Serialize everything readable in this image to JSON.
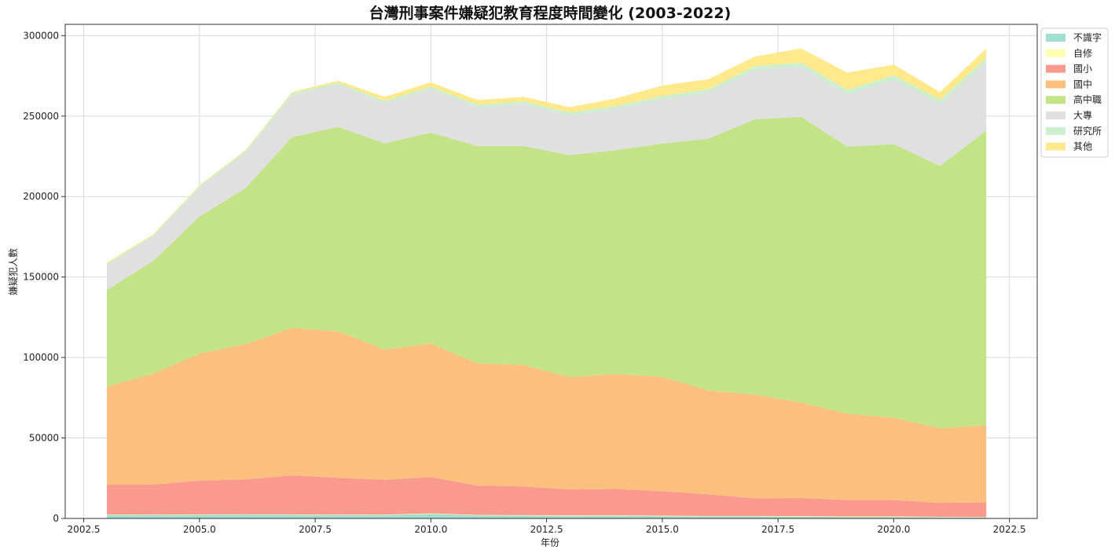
{
  "chart_data": {
    "type": "area",
    "stacked": true,
    "title": "台灣刑事案件嫌疑犯教育程度時間變化 (2003-2022)",
    "xlabel": "年份",
    "ylabel": "嫌疑犯人數",
    "x": [
      2003,
      2004,
      2005,
      2006,
      2007,
      2008,
      2009,
      2010,
      2011,
      2012,
      2013,
      2014,
      2015,
      2016,
      2017,
      2018,
      2019,
      2020,
      2021,
      2022
    ],
    "xlim": [
      2002.1,
      2023.1
    ],
    "ylim": [
      0,
      307000
    ],
    "xticks": [
      2002.5,
      2005.0,
      2007.5,
      2010.0,
      2012.5,
      2015.0,
      2017.5,
      2020.0,
      2022.5
    ],
    "xtick_labels": [
      "2002.5",
      "2005.0",
      "2007.5",
      "2010.0",
      "2012.5",
      "2015.0",
      "2017.5",
      "2020.0",
      "2022.5"
    ],
    "yticks": [
      0,
      50000,
      100000,
      150000,
      200000,
      250000,
      300000
    ],
    "ytick_labels": [
      "0",
      "50000",
      "100000",
      "150000",
      "200000",
      "250000",
      "300000"
    ],
    "grid": true,
    "legend_position": "top-right-outside",
    "series": [
      {
        "name": "不識字",
        "color": "#9edfcf",
        "values": [
          2200,
          2000,
          2200,
          2300,
          2200,
          2000,
          2100,
          2800,
          1900,
          1700,
          1500,
          1600,
          1400,
          1200,
          1200,
          1100,
          900,
          900,
          700,
          600
        ]
      },
      {
        "name": "自修",
        "color": "#ffffb0",
        "values": [
          300,
          300,
          300,
          300,
          300,
          300,
          300,
          300,
          300,
          300,
          300,
          300,
          300,
          300,
          300,
          300,
          300,
          300,
          300,
          300
        ]
      },
      {
        "name": "國小",
        "color": "#fa9a8f",
        "values": [
          18500,
          18700,
          21000,
          21700,
          24300,
          23000,
          21600,
          22600,
          18200,
          17900,
          16200,
          16400,
          15200,
          13500,
          11000,
          11300,
          10200,
          10200,
          8700,
          9100
        ]
      },
      {
        "name": "國中",
        "color": "#fcc07e",
        "values": [
          61000,
          69000,
          79000,
          84000,
          91600,
          91000,
          81000,
          83000,
          76000,
          75500,
          69800,
          71500,
          71000,
          64500,
          64500,
          59300,
          53600,
          51100,
          46300,
          48000
        ]
      },
      {
        "name": "高中職",
        "color": "#c2e386",
        "values": [
          60000,
          70000,
          85000,
          97000,
          118500,
          127000,
          128000,
          131000,
          135000,
          136000,
          138000,
          139000,
          145000,
          156500,
          171000,
          177500,
          166000,
          170000,
          163000,
          183000
        ]
      },
      {
        "name": "大專",
        "color": "#e0e0e0",
        "values": [
          15500,
          15000,
          18000,
          22000,
          26000,
          26000,
          25000,
          27000,
          24000,
          26000,
          24500,
          25500,
          27500,
          28500,
          30500,
          31000,
          32500,
          40000,
          38500,
          42000
        ]
      },
      {
        "name": "研究所",
        "color": "#cdefcf",
        "values": [
          800,
          900,
          1000,
          1200,
          1400,
          1500,
          1500,
          1600,
          1700,
          1800,
          1900,
          2000,
          2100,
          2300,
          2500,
          2700,
          2800,
          2900,
          2700,
          3000
        ]
      },
      {
        "name": "其他",
        "color": "#ffe98c",
        "values": [
          700,
          600,
          500,
          500,
          700,
          1200,
          2500,
          2700,
          2900,
          2800,
          3300,
          4700,
          6500,
          6200,
          6000,
          8800,
          10700,
          6600,
          4800,
          6000
        ]
      }
    ]
  }
}
